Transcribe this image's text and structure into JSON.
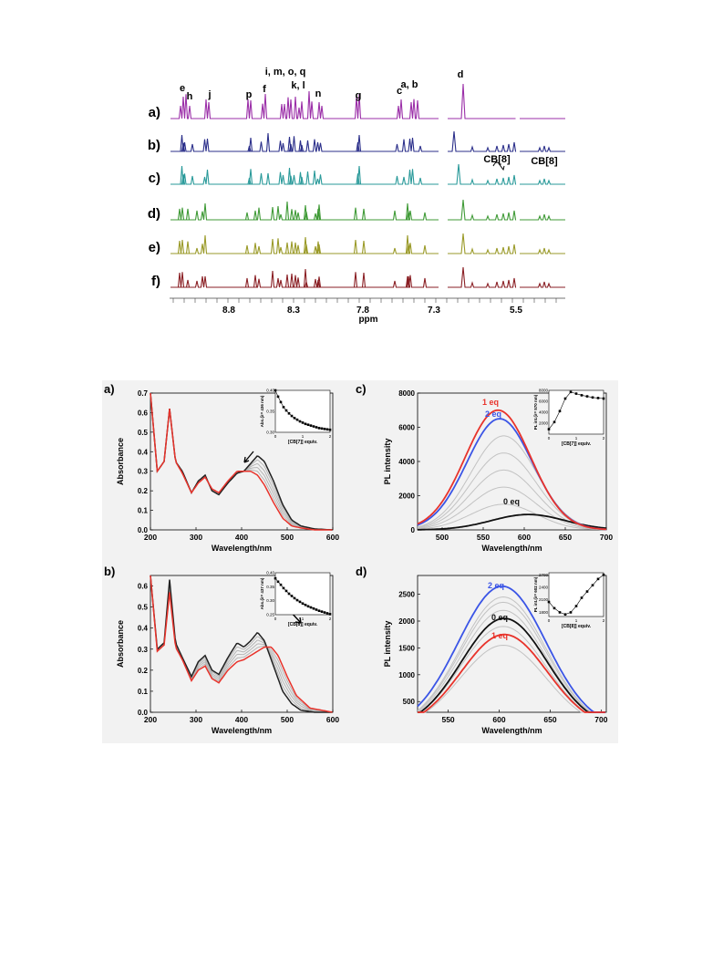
{
  "nmr": {
    "axis_ticks": [
      "8.8",
      "8.3",
      "7.8",
      "7.3",
      "5.5"
    ],
    "axis_label": "ppm",
    "rows": [
      {
        "label": "a)",
        "color": "#9b2fa8"
      },
      {
        "label": "b)",
        "color": "#2b2f8a"
      },
      {
        "label": "c)",
        "color": "#2a9a9a"
      },
      {
        "label": "d)",
        "color": "#3f9a36"
      },
      {
        "label": "e)",
        "color": "#9a9a28"
      },
      {
        "label": "f)",
        "color": "#8a1f24"
      }
    ],
    "peak_labels": [
      "e",
      "h",
      "j",
      "p",
      "f",
      "i, m, o, q",
      "k, l",
      "n",
      "g",
      "c",
      "a, b",
      "d",
      "CB[8]",
      "CB[8]"
    ]
  },
  "chart_data": [
    {
      "panel": "a)",
      "type": "line",
      "xlabel": "Wavelength/nm",
      "ylabel": "Absorbance",
      "xlim": [
        200,
        600
      ],
      "ylim": [
        0,
        0.7
      ],
      "xticks": [
        "200",
        "300",
        "400",
        "500",
        "600"
      ],
      "yticks": [
        "0.0",
        "0.1",
        "0.2",
        "0.3",
        "0.4",
        "0.5",
        "0.6",
        "0.7"
      ],
      "series_colors": {
        "start": "#222222",
        "end": "#e8332b",
        "mid": "#bdbdbd"
      },
      "series": [
        {
          "x": [
            200,
            215,
            230,
            242,
            255,
            270,
            290,
            305,
            320,
            335,
            350,
            370,
            390,
            405,
            420,
            435,
            450,
            470,
            490,
            510,
            530,
            560,
            600
          ],
          "values": [
            0.7,
            0.3,
            0.35,
            0.62,
            0.35,
            0.3,
            0.19,
            0.25,
            0.28,
            0.2,
            0.18,
            0.24,
            0.29,
            0.3,
            0.34,
            0.38,
            0.35,
            0.25,
            0.13,
            0.05,
            0.02,
            0.005,
            0.0
          ]
        },
        {
          "x": [
            200,
            215,
            230,
            242,
            255,
            270,
            290,
            305,
            320,
            335,
            350,
            370,
            390,
            405,
            420,
            435,
            450,
            470,
            490,
            510,
            530,
            560,
            600
          ],
          "values": [
            0.7,
            0.3,
            0.35,
            0.62,
            0.35,
            0.29,
            0.19,
            0.24,
            0.27,
            0.21,
            0.19,
            0.25,
            0.3,
            0.3,
            0.3,
            0.28,
            0.23,
            0.14,
            0.06,
            0.02,
            0.01,
            0.0,
            0.0
          ]
        }
      ],
      "annotation": "arrow down",
      "inset": {
        "xlabel": "[CB[7]] equiv.",
        "ylabel": "Abs.(λ= 436 nm)",
        "xticks": [
          "0",
          "1",
          "2"
        ],
        "yticks": [
          "0.30",
          "0.35",
          "0.40"
        ],
        "x": [
          0,
          0.1,
          0.2,
          0.3,
          0.4,
          0.5,
          0.6,
          0.7,
          0.8,
          0.9,
          1.0,
          1.1,
          1.2,
          1.3,
          1.4,
          1.5,
          1.6,
          1.7,
          1.8,
          1.9,
          2.0
        ],
        "values": [
          0.4,
          0.385,
          0.372,
          0.36,
          0.352,
          0.345,
          0.339,
          0.334,
          0.33,
          0.326,
          0.323,
          0.32,
          0.318,
          0.316,
          0.314,
          0.312,
          0.31,
          0.309,
          0.308,
          0.307,
          0.306
        ],
        "ylim": [
          0.3,
          0.4
        ]
      }
    },
    {
      "panel": "b)",
      "type": "line",
      "xlabel": "Wavelength/nm",
      "ylabel": "Absorbance",
      "xlim": [
        200,
        600
      ],
      "ylim": [
        0,
        0.65
      ],
      "xticks": [
        "200",
        "300",
        "400",
        "500",
        "600"
      ],
      "yticks": [
        "0.0",
        "0.1",
        "0.2",
        "0.3",
        "0.4",
        "0.5",
        "0.6"
      ],
      "series": [
        {
          "x": [
            200,
            215,
            230,
            242,
            255,
            270,
            290,
            305,
            320,
            335,
            350,
            370,
            390,
            405,
            420,
            435,
            450,
            470,
            490,
            510,
            530,
            560,
            600
          ],
          "values": [
            0.65,
            0.3,
            0.33,
            0.63,
            0.33,
            0.26,
            0.17,
            0.24,
            0.27,
            0.2,
            0.18,
            0.26,
            0.33,
            0.31,
            0.34,
            0.38,
            0.34,
            0.22,
            0.1,
            0.04,
            0.01,
            0.0,
            0.0
          ]
        },
        {
          "x": [
            200,
            215,
            230,
            242,
            255,
            270,
            290,
            305,
            320,
            335,
            350,
            370,
            390,
            405,
            420,
            435,
            450,
            465,
            480,
            500,
            520,
            550,
            600
          ],
          "values": [
            0.65,
            0.29,
            0.32,
            0.57,
            0.31,
            0.25,
            0.15,
            0.2,
            0.22,
            0.16,
            0.14,
            0.2,
            0.24,
            0.25,
            0.27,
            0.29,
            0.31,
            0.31,
            0.27,
            0.17,
            0.08,
            0.02,
            0.0
          ]
        }
      ],
      "annotation": "arrow right",
      "inset": {
        "xlabel": "[CB[8]] equiv.",
        "ylabel": "Abs.(λ= 437 nm)",
        "xticks": [
          "0",
          "1",
          "2"
        ],
        "yticks": [
          "0.25",
          "0.30",
          "0.35",
          "0.40"
        ],
        "x": [
          0,
          0.1,
          0.2,
          0.3,
          0.4,
          0.5,
          0.6,
          0.7,
          0.8,
          0.9,
          1.0,
          1.1,
          1.2,
          1.3,
          1.4,
          1.5,
          1.6,
          1.7,
          1.8,
          1.9,
          2.0
        ],
        "values": [
          0.38,
          0.368,
          0.357,
          0.345,
          0.335,
          0.325,
          0.317,
          0.309,
          0.302,
          0.296,
          0.29,
          0.285,
          0.28,
          0.276,
          0.272,
          0.268,
          0.264,
          0.261,
          0.258,
          0.255,
          0.252
        ],
        "ylim": [
          0.25,
          0.4
        ]
      }
    },
    {
      "panel": "c)",
      "type": "line",
      "xlabel": "Wavelength/nm",
      "ylabel": "PL intensity",
      "xlim": [
        470,
        700
      ],
      "ylim": [
        0,
        8000
      ],
      "xticks": [
        "500",
        "550",
        "600",
        "650",
        "700"
      ],
      "yticks": [
        "0",
        "2000",
        "4000",
        "6000",
        "8000"
      ],
      "series_labels": [
        "1 eq",
        "2 eq",
        "0 eq"
      ],
      "peaks": {
        "zero": {
          "center": 605,
          "height": 900,
          "width": 55
        },
        "one": {
          "center": 568,
          "height": 7000,
          "width": 50
        },
        "two": {
          "center": 570,
          "height": 6500,
          "width": 50
        },
        "grey": [
          1500,
          2500,
          3500,
          4500,
          5500
        ]
      },
      "inset": {
        "xlabel": "[CB[7]] equiv.",
        "ylabel": "PL int.(λ= 570 nm)",
        "xticks": [
          "0",
          "1",
          "2"
        ],
        "yticks": [
          "2000",
          "4000",
          "6000",
          "8000"
        ],
        "x": [
          0,
          0.2,
          0.4,
          0.6,
          0.8,
          1.0,
          1.2,
          1.4,
          1.6,
          1.8,
          2.0
        ],
        "values": [
          900,
          2200,
          4200,
          6500,
          7700,
          7400,
          7100,
          6900,
          6700,
          6600,
          6500
        ],
        "ylim": [
          0,
          8000
        ]
      }
    },
    {
      "panel": "d)",
      "type": "line",
      "xlabel": "Wavelength/nm",
      "ylabel": "PL intensity",
      "xlim": [
        520,
        705
      ],
      "ylim": [
        300,
        2850
      ],
      "xticks": [
        "550",
        "600",
        "650",
        "700"
      ],
      "yticks": [
        "500",
        "1000",
        "1500",
        "2000",
        "2500"
      ],
      "series_labels": [
        "2 eq",
        "0 eq",
        "1 eq"
      ],
      "peaks": {
        "zero": {
          "center": 605,
          "height": 2050
        },
        "one": {
          "center": 605,
          "height": 1750
        },
        "two": {
          "center": 603,
          "height": 2650
        },
        "grey": [
          1550,
          1900,
          2200,
          2350,
          2450
        ]
      },
      "inset": {
        "xlabel": "[CB[8]] equiv.",
        "ylabel": "PL int.(λ= 602 nm)",
        "xticks": [
          "0",
          "1",
          "2"
        ],
        "yticks": [
          "1800",
          "2100",
          "2400",
          "2700"
        ],
        "x": [
          0,
          0.2,
          0.4,
          0.6,
          0.8,
          1.0,
          1.2,
          1.4,
          1.6,
          1.8,
          2.0
        ],
        "values": [
          2050,
          1900,
          1800,
          1750,
          1800,
          1950,
          2150,
          2300,
          2450,
          2600,
          2700
        ],
        "ylim": [
          1700,
          2750
        ]
      }
    }
  ]
}
